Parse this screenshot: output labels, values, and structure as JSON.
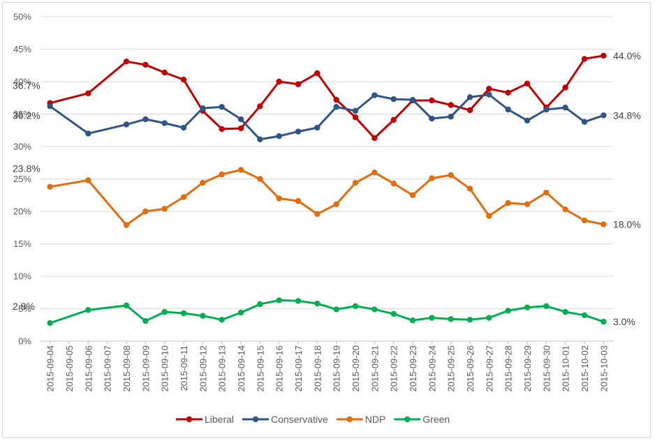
{
  "chart_data": {
    "type": "line",
    "title": "",
    "xlabel": "",
    "ylabel": "",
    "ylim": [
      0,
      50
    ],
    "yticks": [
      "0%",
      "5%",
      "10%",
      "15%",
      "20%",
      "25%",
      "30%",
      "35%",
      "40%",
      "45%",
      "50%"
    ],
    "grid": true,
    "legend_position": "bottom",
    "categories": [
      "2015-09-04",
      "2015-09-05",
      "2015-09-06",
      "2015-09-07",
      "2015-09-08",
      "2015-09-09",
      "2015-09-10",
      "2015-09-11",
      "2015-09-12",
      "2015-09-13",
      "2015-09-14",
      "2015-09-15",
      "2015-09-16",
      "2015-09-17",
      "2015-09-18",
      "2015-09-19",
      "2015-09-20",
      "2015-09-21",
      "2015-09-22",
      "2015-09-23",
      "2015-09-24",
      "2015-09-25",
      "2015-09-26",
      "2015-09-27",
      "2015-09-28",
      "2015-09-29",
      "2015-09-30",
      "2015-10-01",
      "2015-10-02",
      "2015-10-03"
    ],
    "series": [
      {
        "name": "Liberal",
        "color": "#c00000",
        "start_label": "36.7%",
        "end_label": "44.0%",
        "values": [
          36.7,
          null,
          38.2,
          null,
          43.1,
          42.6,
          41.4,
          40.3,
          35.5,
          32.7,
          32.8,
          36.2,
          40.0,
          39.6,
          41.3,
          37.2,
          34.5,
          31.3,
          34.1,
          37.1,
          37.1,
          36.4,
          35.6,
          38.9,
          38.3,
          39.7,
          36.0,
          39.1,
          43.5,
          44.0
        ]
      },
      {
        "name": "Conservative",
        "color": "#2e5585",
        "start_label": "36.2%",
        "end_label": "34.8%",
        "values": [
          36.2,
          null,
          32.0,
          null,
          33.4,
          34.2,
          33.6,
          32.9,
          35.9,
          36.1,
          34.2,
          31.1,
          31.6,
          32.3,
          32.9,
          36.1,
          35.5,
          37.9,
          37.3,
          37.2,
          34.3,
          34.6,
          37.6,
          38.0,
          35.7,
          34.0,
          35.7,
          36.0,
          33.8,
          34.8
        ]
      },
      {
        "name": "NDP",
        "color": "#e46c0a",
        "start_label": "23.8%",
        "end_label": "18.0%",
        "values": [
          23.8,
          null,
          24.8,
          null,
          17.9,
          20.0,
          20.4,
          22.2,
          24.4,
          25.7,
          26.4,
          25.0,
          22.0,
          21.6,
          19.6,
          21.1,
          24.4,
          26.0,
          24.3,
          22.5,
          25.1,
          25.6,
          23.5,
          19.3,
          21.3,
          21.1,
          22.9,
          20.3,
          18.6,
          18.0
        ]
      },
      {
        "name": "Green",
        "color": "#00b050",
        "start_label": "2.8%",
        "end_label": "3.0%",
        "values": [
          2.8,
          null,
          4.8,
          null,
          5.5,
          3.1,
          4.5,
          4.3,
          3.9,
          3.3,
          4.4,
          5.7,
          6.3,
          6.2,
          5.8,
          4.9,
          5.4,
          4.9,
          4.2,
          3.2,
          3.6,
          3.4,
          3.3,
          3.6,
          4.7,
          5.2,
          5.4,
          4.5,
          4.0,
          3.0
        ]
      }
    ]
  }
}
